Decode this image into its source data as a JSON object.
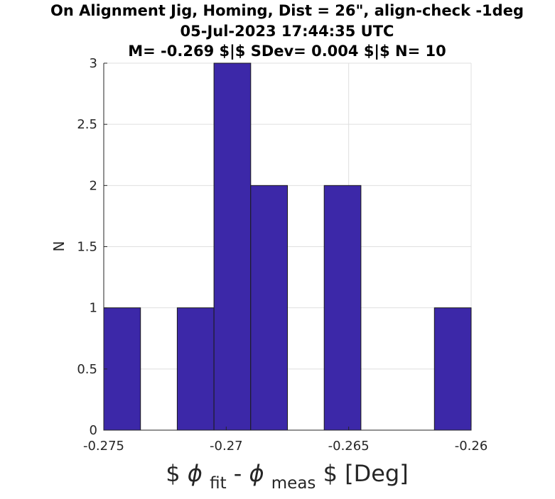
{
  "chart_data": {
    "type": "bar",
    "title": [
      "On Alignment Jig, Homing, Dist = 26\", align-check -1deg",
      "05-Jul-2023 17:44:35 UTC",
      "M= -0.269 $|$ SDev= 0.004 $|$ N= 10"
    ],
    "xlabel": {
      "prefix": "$",
      "phi1": "ϕ",
      "sub1": "fit",
      "dash": "-",
      "phi2": "ϕ",
      "sub2": "meas",
      "suffix": "$ [Deg]"
    },
    "ylabel": "N",
    "xlim": [
      -0.275,
      -0.26
    ],
    "ylim": [
      0,
      3
    ],
    "xticks": [
      -0.275,
      -0.27,
      -0.265,
      -0.26
    ],
    "xtick_labels": [
      "-0.275",
      "-0.27",
      "-0.265",
      "-0.26"
    ],
    "yticks": [
      0,
      0.5,
      1,
      1.5,
      2,
      2.5,
      3
    ],
    "ytick_labels": [
      "0",
      "0.5",
      "1",
      "1.5",
      "2",
      "2.5",
      "3"
    ],
    "bin_edges": [
      -0.275,
      -0.2735,
      -0.272,
      -0.2705,
      -0.269,
      -0.2675,
      -0.266,
      -0.2645,
      -0.263,
      -0.2615,
      -0.26
    ],
    "counts": [
      1,
      0,
      1,
      3,
      2,
      0,
      2,
      0,
      0,
      1
    ],
    "grid": true,
    "bar_color": "#3c28a8",
    "edge_color": "#1a1a1a"
  }
}
